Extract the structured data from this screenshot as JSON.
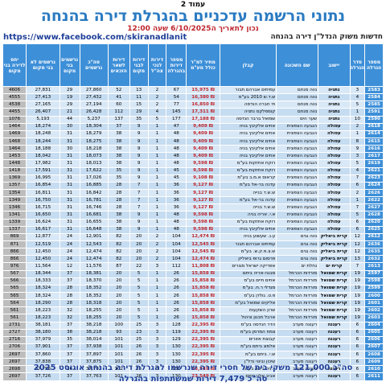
{
  "page_label": "עמוד 2",
  "title": "נתוני הרשמה עדכניים בהגרלת דירה בהנחה",
  "updated": "נכון לתאריך ה6/10/2025 שעה 12:00",
  "url": "https://www.facebook.com/skiranadlanit",
  "news": "חדשות משוק הנדל\"ן דירה בהנחה",
  "columns": [
    "מספר הגרלה",
    "סדר הגרלה",
    "יישוב",
    "שם השכונה",
    "קבלן",
    "מחיר למ\"ר כולל מע\"מ",
    "מספר דירות בהגרלה",
    "דירות לנכי צה\"ל",
    "דירות לבני מקום",
    "דירות לשאר הזכאים",
    "סה\"כ נרשמים",
    "נרשמים בני מקום",
    "נרשמים לא בני מקום",
    "יחס לדירה בני מקום"
  ],
  "rows": [
    [
      "2583",
      "3",
      "נתניה",
      "נווה מנחם",
      "עמיתים אברהם תבור",
      "₪ 15,975",
      "67",
      "2",
      "13",
      "52",
      "27,860",
      "29",
      "27,831",
      "4606"
    ],
    [
      "2584",
      "4",
      "נתניה",
      "נווה מנחם",
      "ש.ד.ש 2010 בע\"מ",
      "₪ 16,380",
      "54",
      "2",
      "11",
      "41",
      "27,432",
      "19",
      "27,413",
      "4555"
    ],
    [
      "2585",
      "5",
      "נתניה",
      "נווה מנחם",
      "חי חברה הנדסה",
      "₪ 16,850",
      "77",
      "2",
      "15",
      "60",
      "27,194",
      "29",
      "27,165",
      "4538"
    ],
    [
      "2591",
      "1",
      "נתניה",
      "נווה מנחם",
      "קומפלקס נתניה",
      "₪ 17,311",
      "145",
      "4",
      "29",
      "112",
      "26,428",
      "21",
      "26,407",
      "4455"
    ],
    [
      "2590",
      "10",
      "נתניה",
      "שער הים",
      "שמואל ברבר הנדסה",
      "₪ 17,188",
      "177",
      "5",
      "35",
      "137",
      "5,237",
      "44",
      "5,193",
      "1076"
    ],
    [
      "2618",
      "2",
      "עפולה",
      "הגבעה הצפונית",
      "אחים אלקיבץ בניה",
      "₪ 9,409",
      "47",
      "1",
      "9",
      "37",
      "18,304",
      "30",
      "18,274",
      "1464"
    ],
    [
      "2614",
      "1",
      "עפולה",
      "הגבעה הצפונית",
      "אחים אלקיבץ בניה",
      "₪ 9,409",
      "48",
      "1",
      "9",
      "38",
      "18,279",
      "31",
      "18,248",
      "1469"
    ],
    [
      "2615",
      "8",
      "עפולה",
      "הגבעה הצפונית",
      "אחים אלקיבץ בניה",
      "₪ 9,409",
      "48",
      "1",
      "9",
      "38",
      "18,275",
      "31",
      "18,244",
      "1468"
    ],
    [
      "2616",
      "9",
      "עפולה",
      "הגבעה הצפונית",
      "אחים אלקיבץ בניה",
      "₪ 9,409",
      "48",
      "1",
      "9",
      "38",
      "18,218",
      "30",
      "18,188",
      "1464"
    ],
    [
      "2617",
      "3",
      "עפולה",
      "הגבעה הצפונית",
      "אחים אלקיבץ בניה",
      "₪ 9,409",
      "48",
      "1",
      "9",
      "38",
      "18,073",
      "31",
      "18,042",
      "1453"
    ],
    [
      "2619",
      "5",
      "עפולה",
      "הגבעה הצפונית",
      "רוקח אחזקות בע\"מ",
      "₪ 9,598",
      "48",
      "1",
      "9",
      "38",
      "18,013",
      "31",
      "17,982",
      "1448"
    ],
    [
      "2621",
      "4",
      "עפולה",
      "הגבעה הצפונית",
      "רוקח אחזקות בע\"מ",
      "₪ 9,598",
      "45",
      "1",
      "9",
      "35",
      "17,622",
      "31",
      "17,591",
      "1418"
    ],
    [
      "2623",
      "7",
      "עפולה",
      "הגבעה הצפונית",
      "קראוס א.מ.ב בע\"מ",
      "₪ 9,108",
      "45",
      "1",
      "9",
      "35",
      "17,026",
      "31",
      "16,995",
      "1369"
    ],
    [
      "2624",
      "6",
      "עפולה",
      "הגבעה הצפונית",
      "עדנה בר-אל בע\"מ",
      "₪ 9,127",
      "36",
      "1",
      "7",
      "28",
      "16,885",
      "31",
      "16,854",
      "1357"
    ],
    [
      "2626",
      "2",
      "עפולה",
      "הגבעה הצפונית",
      "ש.ש.ד בנייה",
      "₪ 9,127",
      "36",
      "1",
      "7",
      "28",
      "16,842",
      "31",
      "16,811",
      "1354"
    ],
    [
      "2622",
      "1",
      "עפולה",
      "הגבעה הצפונית",
      "עדנה בר-אל בע\"מ",
      "₪ 9,127",
      "36",
      "1",
      "7",
      "28",
      "16,781",
      "31",
      "16,750",
      "1349"
    ],
    [
      "2627",
      "7",
      "עפולה",
      "הגבעה הצפונית",
      "ש.ש.ד בנייה",
      "₪ 9,127",
      "36",
      "1",
      "7",
      "28",
      "16,746",
      "31",
      "16,715",
      "1346"
    ],
    [
      "2628",
      "5",
      "עפולה",
      "הגבעה הצפונית",
      "א.י. אריה בניה",
      "₪ 9,598",
      "48",
      "1",
      "9",
      "38",
      "16,681",
      "31",
      "16,650",
      "1341"
    ],
    [
      "2620",
      "6",
      "עפולה",
      "הגבעה הצפונית",
      "רוקח אחזקות בע\"מ",
      "₪ 9,598",
      "48",
      "1",
      "9",
      "38",
      "16,655",
      "31",
      "16,624",
      "1339"
    ],
    [
      "2625",
      "6",
      "עפולה",
      "הגבעה הצפונית",
      "אחים אלקיבץ בניה",
      "₪ 9,598",
      "48",
      "1",
      "9",
      "38",
      "16,648",
      "31",
      "16,617",
      "1337"
    ],
    [
      "2612",
      "12",
      "קרית ביאליק",
      "נווה גנים",
      "ע.נ. שעשוע בניה",
      "₪ 12,474",
      "104",
      "2",
      "20",
      "82",
      "12,901",
      "24",
      "12,877",
      "869"
    ],
    [
      "2636",
      "12",
      "קרית ביאליק",
      "נווה גנים",
      "עמיתים אברהם תבור",
      "₪ 12,545",
      "104",
      "2",
      "20",
      "82",
      "12,543",
      "24",
      "12,519",
      "871"
    ],
    [
      "2635",
      "12",
      "קרית ביאליק",
      "נווה גנים",
      "ש.צ.פ.ק.ש. בע\"מ",
      "₪ 12,545",
      "104",
      "2",
      "20",
      "82",
      "12,474",
      "24",
      "12,450",
      "866"
    ],
    [
      "2632",
      "13",
      "קרית ביאליק",
      "נווה גנים",
      "פרסום גרופ ביאליק",
      "₪ 12,474",
      "104",
      "2",
      "20",
      "82",
      "12,474",
      "24",
      "12,450",
      "866"
    ],
    [
      "2613",
      "7",
      "קרית ים",
      "נחלת ים",
      "אפריקה ישראל מגורים",
      "₪ 11,808",
      "112",
      "3",
      "22",
      "87",
      "11,576",
      "12",
      "11,564",
      "976"
    ],
    [
      "2597",
      "19",
      "קרית שמואל",
      "מורדות הכרמל",
      "מבנה-אריה ביתם",
      "₪ 15,858",
      "26",
      "1",
      "5",
      "20",
      "18,381",
      "37",
      "18,344",
      "567"
    ],
    [
      "2598",
      "19",
      "קרית שמואל",
      "מורדות הכרמל",
      "אחים חיים בע\"מ",
      "₪ 15,858",
      "26",
      "1",
      "5",
      "20",
      "18,370",
      "37",
      "18,333",
      "566"
    ],
    [
      "2599",
      "19",
      "קרית שמואל",
      "מורדות הכרמל",
      "מגדלי ר.ח. בע\"מ",
      "₪ 15,858",
      "26",
      "1",
      "5",
      "20",
      "18,352",
      "28",
      "18,324",
      "565"
    ],
    [
      "2600",
      "19",
      "קרית שמואל",
      "מורדות הכרמל",
      "פ.ט. גולדן בע\"מ",
      "₪ 15,858",
      "26",
      "1",
      "5",
      "20",
      "18,352",
      "28",
      "18,324",
      "565"
    ],
    [
      "2601",
      "19",
      "קרית שמואל",
      "מורדות הכרמל",
      "אליקים שמואל בע\"מ",
      "₪ 15,858",
      "26",
      "1",
      "5",
      "20",
      "18,318",
      "28",
      "18,290",
      "564"
    ],
    [
      "2602",
      "19",
      "קרית שמואל",
      "מורדות הכרמל",
      "שרון השקעות",
      "₪ 15,858",
      "26",
      "1",
      "5",
      "20",
      "18,255",
      "32",
      "18,223",
      "561"
    ],
    [
      "2603",
      "19",
      "קרית שמואל",
      "מורדות הכרמל",
      "ארבל תכנון וניהול",
      "₪ 15,858",
      "26",
      "1",
      "5",
      "20",
      "18,255",
      "32",
      "18,223",
      "561"
    ],
    [
      "2604",
      "6",
      "רעננה",
      "רעננה מערב",
      "הדר הנדסה בע\"מ",
      "₪ 22,395",
      "128",
      "3",
      "25",
      "100",
      "38,218",
      "37",
      "38,181",
      "2731"
    ],
    [
      "2605",
      "6",
      "רעננה",
      "רעננה מערב",
      "צמח המרמן בע\"מ",
      "₪ 22,395",
      "119",
      "3",
      "23",
      "93",
      "38,218",
      "38",
      "38,180",
      "2727"
    ],
    [
      "2606",
      "6",
      "רעננה",
      "רעננה מערב",
      "קבוצת אזורים",
      "₪ 22,395",
      "129",
      "3",
      "25",
      "101",
      "38,014",
      "35",
      "37,979",
      "2716"
    ],
    [
      "2607",
      "6",
      "רעננה",
      "רעננה מערב",
      "אלמוג ביתם בע\"מ",
      "₪ 22,395",
      "130",
      "3",
      "26",
      "101",
      "37,938",
      "37",
      "37,901",
      "2706"
    ],
    [
      "2608",
      "6",
      "רעננה",
      "רעננה מערב",
      "ש.י. ביתם בע\"מ",
      "₪ 22,395",
      "130",
      "3",
      "26",
      "101",
      "37,897",
      "37",
      "37,860",
      "2697"
    ],
    [
      "2609",
      "6",
      "רעננה",
      "רעננה מערב",
      "שיכון ובינוי נדל\"ן",
      "₪ 22,395",
      "130",
      "3",
      "26",
      "101",
      "37,875",
      "37",
      "37,838",
      "2697"
    ],
    [
      "2610",
      "6",
      "רעננה",
      "רעננה מערב",
      "ד.ניר ביתם בע\"מ",
      "₪ 23,549",
      "130",
      "3",
      "25",
      "102",
      "37,792",
      "36",
      "37,756",
      "2698"
    ],
    [
      "2611",
      "6",
      "רעננה",
      "רעננה מערב",
      "אביב אלון ביתם",
      "₪ 23,549",
      "130",
      "3",
      "26",
      "101",
      "37,763",
      "37",
      "37,726",
      "2697"
    ]
  ],
  "footer_total": "סה\"כ 121,000 משקי בית של חסרי דירה שנרשמו להגרלת דירה בהנחה אוגוסט 2025",
  "footer_sum": "סה\"כ 7,479 דירות שמשתתפות בהגרלה",
  "colors": {
    "header_blue": "#3d8fd8",
    "title_blue": "#2a7ac2",
    "accent_red": "#c0262d",
    "row_light": "#d9e8f6",
    "row_dark": "#c5dcf1"
  }
}
